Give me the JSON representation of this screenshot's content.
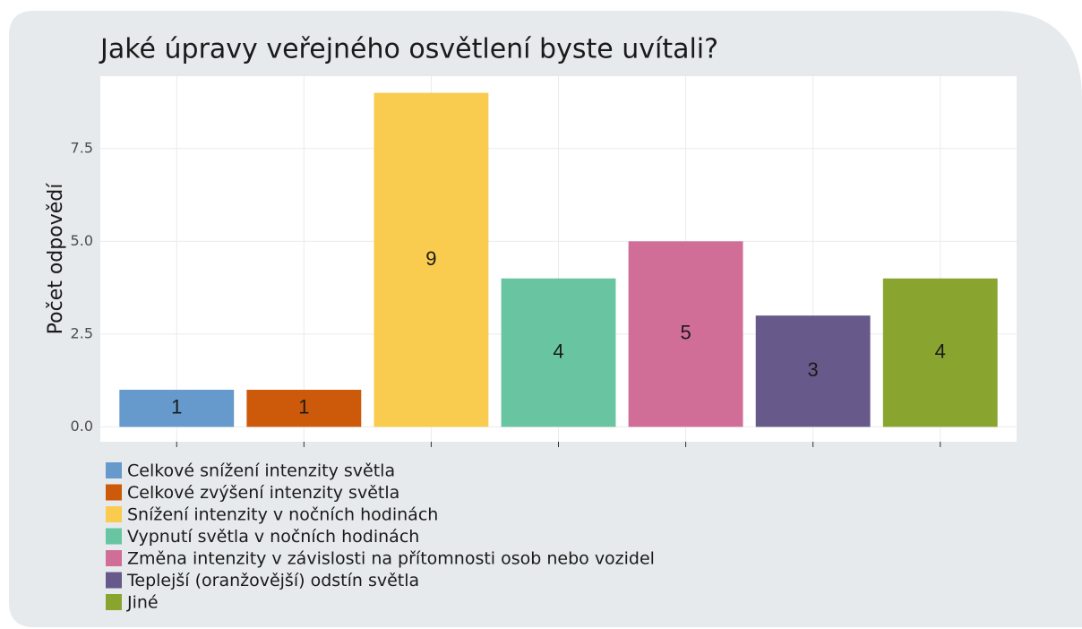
{
  "chart_data": {
    "type": "bar",
    "title": "Jaké úpravy veřejného osvětlení byste uvítali?",
    "y_label": "Počet odpovědí",
    "categories": [
      "Celkové snížení intenzity světla",
      "Celkové zvýšení intenzity světla",
      "Snížení intenzity v nočních hodinách",
      "Vypnutí světla v nočních hodinách",
      "Změna intenzity v závislosti na přítomnosti osob nebo vozidel",
      "Teplejší (oranžovější) odstín světla",
      "Jiné"
    ],
    "values": [
      1,
      1,
      9,
      4,
      5,
      3,
      4
    ],
    "colors": [
      "#6699cc",
      "#cc5a0a",
      "#f9cb4f",
      "#69c5a1",
      "#d06e98",
      "#675a8b",
      "#8aa52f"
    ],
    "ylim": [
      -0.4,
      9.45
    ],
    "yticks": [
      {
        "value": 0,
        "label": "0.0"
      },
      2.5,
      {
        "value": 5,
        "label": "5.0"
      },
      7.5
    ],
    "grid": true,
    "legend": "bottom-left"
  }
}
